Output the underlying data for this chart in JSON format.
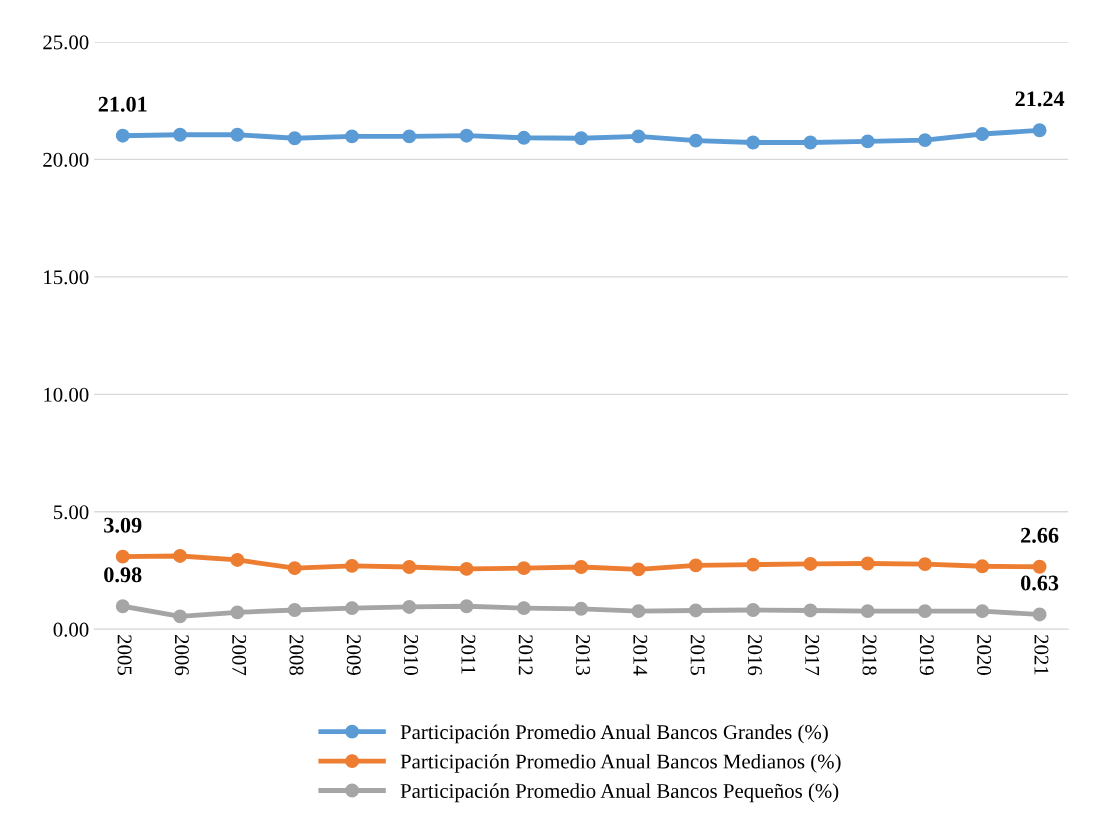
{
  "chart_data": {
    "type": "line",
    "categories": [
      "2005",
      "2006",
      "2007",
      "2008",
      "2009",
      "2010",
      "2011",
      "2012",
      "2013",
      "2014",
      "2015",
      "2016",
      "2017",
      "2018",
      "2019",
      "2020",
      "2021"
    ],
    "series": [
      {
        "name": "Participación Promedio Anual Bancos Grandes (%)",
        "color": "#5b9bd5",
        "values": [
          21.01,
          21.05,
          21.05,
          20.9,
          20.98,
          20.98,
          21.01,
          20.92,
          20.9,
          20.98,
          20.8,
          20.72,
          20.72,
          20.77,
          20.82,
          21.08,
          21.24
        ],
        "value_labels": [
          "21.01",
          null,
          null,
          null,
          null,
          null,
          null,
          null,
          null,
          null,
          null,
          null,
          null,
          null,
          null,
          null,
          "21.24"
        ]
      },
      {
        "name": "Participación Promedio Anual Bancos Medianos (%)",
        "color": "#ed7d31",
        "values": [
          3.09,
          3.12,
          2.95,
          2.6,
          2.7,
          2.65,
          2.57,
          2.6,
          2.65,
          2.55,
          2.72,
          2.75,
          2.78,
          2.8,
          2.77,
          2.68,
          2.66
        ],
        "value_labels": [
          "3.09",
          null,
          null,
          null,
          null,
          null,
          null,
          null,
          null,
          null,
          null,
          null,
          null,
          null,
          null,
          null,
          "2.66"
        ]
      },
      {
        "name": "Participación Promedio Anual Bancos Pequeños (%)",
        "color": "#a5a5a5",
        "values": [
          0.98,
          0.55,
          0.72,
          0.82,
          0.9,
          0.95,
          0.98,
          0.9,
          0.87,
          0.77,
          0.8,
          0.82,
          0.8,
          0.77,
          0.77,
          0.77,
          0.63
        ],
        "value_labels": [
          "0.98",
          null,
          null,
          null,
          null,
          null,
          null,
          null,
          null,
          null,
          null,
          null,
          null,
          null,
          null,
          null,
          "0.63"
        ]
      }
    ],
    "ylim": [
      0,
      25
    ],
    "yticks": [
      {
        "value": 0,
        "label": "0.00"
      },
      {
        "value": 5,
        "label": "5.00"
      },
      {
        "value": 10,
        "label": "10.00"
      },
      {
        "value": 15,
        "label": "15.00"
      },
      {
        "value": 20,
        "label": "20.00"
      },
      {
        "value": 25,
        "label": "25.00"
      }
    ],
    "grid": "y",
    "legend": "bottom",
    "marker": "circle",
    "line_style": "solid"
  }
}
